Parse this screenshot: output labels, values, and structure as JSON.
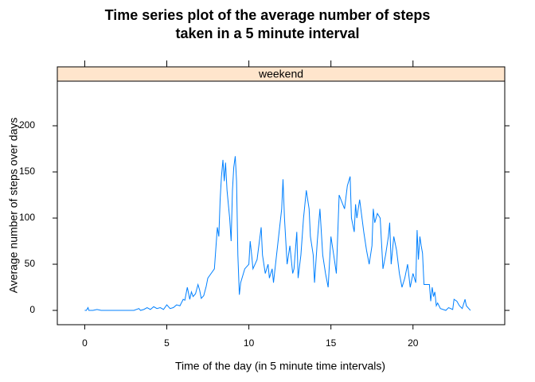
{
  "chart_data": {
    "type": "line",
    "title": "Time series plot of the average number of steps taken in a 5 minute interval",
    "panel": "weekend",
    "xlabel": "Time of the day (in 5 minute time intervals)",
    "ylabel": "Average number of steps over days",
    "color": "#0080ff",
    "strip_color": "#ffe5cc",
    "xlim": [
      -1.67,
      25.59
    ],
    "ylim": [
      -15.5,
      248.3
    ],
    "xticks": [
      0,
      5,
      10,
      15,
      20
    ],
    "yticks": [
      0,
      50,
      100,
      150,
      200
    ],
    "x": [
      0,
      0.1,
      0.2,
      0.25,
      0.5,
      0.75,
      1,
      1.5,
      2,
      2.5,
      3,
      3.3,
      3.4,
      3.6,
      3.8,
      4,
      4.2,
      4.4,
      4.6,
      4.8,
      5,
      5.2,
      5.4,
      5.6,
      5.8,
      6,
      6.1,
      6.25,
      6.4,
      6.5,
      6.6,
      6.75,
      6.9,
      7,
      7.1,
      7.25,
      7.4,
      7.5,
      7.7,
      7.9,
      8,
      8.08,
      8.17,
      8.25,
      8.33,
      8.42,
      8.5,
      8.58,
      8.67,
      8.75,
      8.83,
      8.92,
      9,
      9.08,
      9.17,
      9.25,
      9.33,
      9.42,
      9.5,
      9.75,
      10,
      10.08,
      10.17,
      10.25,
      10.5,
      10.75,
      10.83,
      11,
      11.17,
      11.25,
      11.42,
      11.5,
      11.75,
      12,
      12.08,
      12.17,
      12.25,
      12.33,
      12.5,
      12.67,
      12.75,
      12.92,
      13,
      13.17,
      13.33,
      13.5,
      13.67,
      13.75,
      13.92,
      14,
      14.17,
      14.33,
      14.5,
      14.67,
      14.83,
      15,
      15.17,
      15.33,
      15.5,
      15.83,
      16,
      16.17,
      16.25,
      16.42,
      16.5,
      16.58,
      16.75,
      17,
      17.17,
      17.33,
      17.5,
      17.58,
      17.67,
      17.83,
      18,
      18.17,
      18.33,
      18.5,
      18.58,
      18.67,
      18.83,
      19,
      19.17,
      19.33,
      19.5,
      19.67,
      19.83,
      20,
      20.17,
      20.25,
      20.33,
      20.42,
      20.5,
      20.58,
      20.67,
      21,
      21.08,
      21.17,
      21.25,
      21.33,
      21.42,
      21.5,
      21.67,
      22,
      22.17,
      22.42,
      22.5,
      22.67,
      22.83,
      23,
      23.17,
      23.25,
      23.5
    ],
    "values": [
      0,
      0,
      3,
      0,
      0,
      1,
      0,
      0,
      0,
      0,
      0,
      2,
      0,
      1,
      3,
      1,
      4,
      2,
      3,
      1,
      6,
      2,
      3,
      6,
      5,
      12,
      11,
      25,
      12,
      20,
      15,
      18,
      28,
      22,
      13,
      16,
      26,
      35,
      40,
      45,
      70,
      90,
      80,
      120,
      145,
      163,
      140,
      160,
      130,
      115,
      100,
      75,
      130,
      155,
      167,
      140,
      60,
      17,
      30,
      45,
      50,
      75,
      60,
      45,
      55,
      90,
      60,
      40,
      50,
      35,
      45,
      30,
      70,
      110,
      142,
      100,
      75,
      50,
      70,
      40,
      45,
      85,
      35,
      60,
      100,
      130,
      110,
      80,
      60,
      30,
      75,
      110,
      60,
      40,
      25,
      80,
      60,
      40,
      125,
      110,
      135,
      145,
      100,
      85,
      115,
      100,
      120,
      85,
      65,
      50,
      70,
      110,
      95,
      105,
      100,
      45,
      60,
      80,
      95,
      50,
      80,
      65,
      40,
      25,
      35,
      50,
      25,
      40,
      30,
      87,
      55,
      80,
      70,
      62,
      28,
      28,
      10,
      25,
      15,
      20,
      5,
      8,
      2,
      0,
      3,
      1,
      12,
      10,
      5,
      2,
      12,
      5,
      0
    ]
  }
}
